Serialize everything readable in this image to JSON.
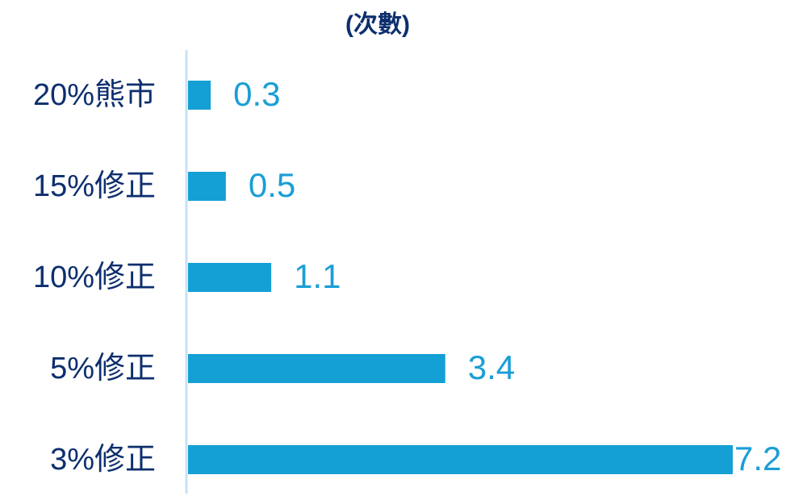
{
  "chart_data": {
    "type": "bar",
    "orientation": "horizontal",
    "title": "(次數)",
    "categories": [
      "20%熊市",
      "15%修正",
      "10%修正",
      "5%修正",
      "3%修正"
    ],
    "values": [
      0.3,
      0.5,
      1.1,
      3.4,
      7.2
    ],
    "color": "#14a0d4"
  }
}
